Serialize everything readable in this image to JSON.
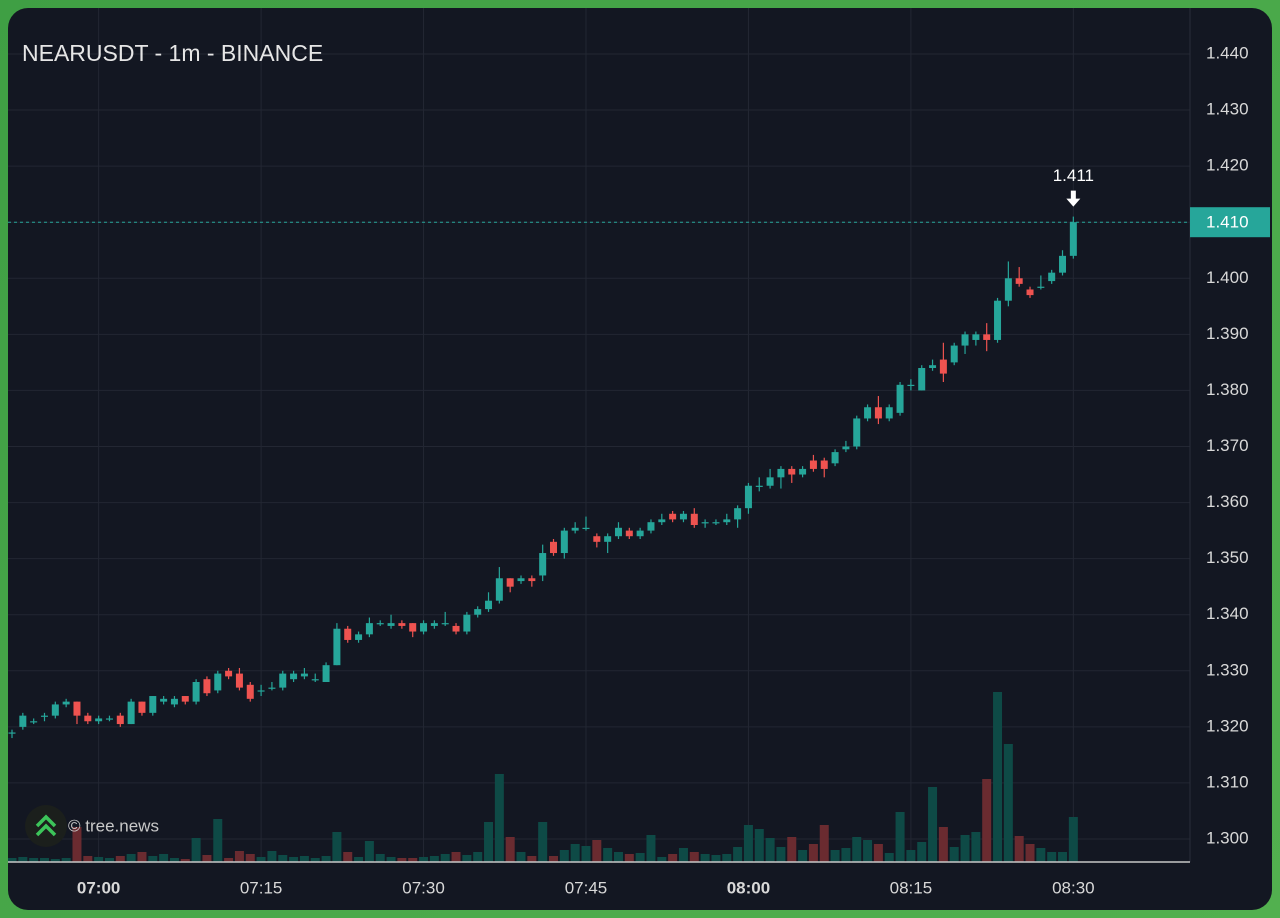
{
  "chart_data": {
    "type": "candlestick",
    "title": "NEARUSDT - 1m - BINANCE",
    "watermark": "© tree.news",
    "x": [
      "06:52",
      "06:53",
      "06:54",
      "06:55",
      "06:56",
      "06:57",
      "06:58",
      "06:59",
      "07:00",
      "07:01",
      "07:02",
      "07:03",
      "07:04",
      "07:05",
      "07:06",
      "07:07",
      "07:08",
      "07:09",
      "07:10",
      "07:11",
      "07:12",
      "07:13",
      "07:14",
      "07:15",
      "07:16",
      "07:17",
      "07:18",
      "07:19",
      "07:20",
      "07:21",
      "07:22",
      "07:23",
      "07:24",
      "07:25",
      "07:26",
      "07:27",
      "07:28",
      "07:29",
      "07:30",
      "07:31",
      "07:32",
      "07:33",
      "07:34",
      "07:35",
      "07:36",
      "07:37",
      "07:38",
      "07:39",
      "07:40",
      "07:41",
      "07:42",
      "07:43",
      "07:44",
      "07:45",
      "07:46",
      "07:47",
      "07:48",
      "07:49",
      "07:50",
      "07:51",
      "07:52",
      "07:53",
      "07:54",
      "07:55",
      "07:56",
      "07:57",
      "07:58",
      "07:59",
      "08:00",
      "08:01",
      "08:02",
      "08:03",
      "08:04",
      "08:05",
      "08:06",
      "08:07",
      "08:08",
      "08:09",
      "08:10",
      "08:11",
      "08:12",
      "08:13",
      "08:14",
      "08:15",
      "08:16",
      "08:17",
      "08:18",
      "08:19",
      "08:20",
      "08:21",
      "08:22",
      "08:23",
      "08:24",
      "08:25",
      "08:26",
      "08:27",
      "08:28",
      "08:29",
      "08:30"
    ],
    "open": [
      1.319,
      1.32,
      1.321,
      1.322,
      1.322,
      1.324,
      1.3245,
      1.322,
      1.321,
      1.3215,
      1.322,
      1.3205,
      1.3245,
      1.3225,
      1.3245,
      1.324,
      1.3255,
      1.3245,
      1.3285,
      1.3265,
      1.33,
      1.3295,
      1.3275,
      1.3265,
      1.327,
      1.327,
      1.3285,
      1.329,
      1.3285,
      1.328,
      1.331,
      1.3375,
      1.3355,
      1.3365,
      1.3385,
      1.338,
      1.3385,
      1.3385,
      1.337,
      1.338,
      1.3385,
      1.338,
      1.337,
      1.34,
      1.341,
      1.3425,
      1.3465,
      1.346,
      1.3465,
      1.347,
      1.353,
      1.351,
      1.355,
      1.3555,
      1.354,
      1.353,
      1.354,
      1.355,
      1.354,
      1.355,
      1.3565,
      1.358,
      1.357,
      1.358,
      1.3565,
      1.3565,
      1.3565,
      1.357,
      1.359,
      1.363,
      1.363,
      1.3645,
      1.366,
      1.365,
      1.3675,
      1.3675,
      1.367,
      1.3695,
      1.37,
      1.375,
      1.377,
      1.375,
      1.376,
      1.381,
      1.38,
      1.384,
      1.3855,
      1.385,
      1.388,
      1.389,
      1.39,
      1.389,
      1.396,
      1.4,
      1.398,
      1.3985,
      1.3995,
      1.401,
      1.404
    ],
    "high": [
      1.3195,
      1.3225,
      1.3215,
      1.3225,
      1.3245,
      1.325,
      1.3245,
      1.3225,
      1.322,
      1.322,
      1.3225,
      1.325,
      1.3245,
      1.3255,
      1.3255,
      1.3255,
      1.3255,
      1.3285,
      1.329,
      1.33,
      1.3305,
      1.3305,
      1.328,
      1.3275,
      1.328,
      1.33,
      1.33,
      1.3305,
      1.3295,
      1.3315,
      1.3385,
      1.338,
      1.337,
      1.3395,
      1.339,
      1.34,
      1.339,
      1.3385,
      1.339,
      1.339,
      1.3405,
      1.3385,
      1.3405,
      1.3415,
      1.344,
      1.3485,
      1.3465,
      1.347,
      1.347,
      1.3525,
      1.3535,
      1.3555,
      1.3565,
      1.3575,
      1.3545,
      1.3545,
      1.3565,
      1.3555,
      1.3555,
      1.357,
      1.358,
      1.3585,
      1.3585,
      1.359,
      1.357,
      1.357,
      1.358,
      1.3595,
      1.3635,
      1.3645,
      1.366,
      1.3665,
      1.3665,
      1.3665,
      1.3685,
      1.368,
      1.3695,
      1.371,
      1.3755,
      1.3775,
      1.379,
      1.3775,
      1.3815,
      1.382,
      1.3845,
      1.3855,
      1.3885,
      1.3885,
      1.3905,
      1.3905,
      1.392,
      1.3965,
      1.403,
      1.402,
      1.3985,
      1.4005,
      1.4015,
      1.405,
      1.411
    ],
    "low": [
      1.318,
      1.3195,
      1.3205,
      1.321,
      1.3215,
      1.3235,
      1.3205,
      1.3205,
      1.3205,
      1.321,
      1.32,
      1.3205,
      1.322,
      1.322,
      1.324,
      1.3235,
      1.324,
      1.324,
      1.3255,
      1.326,
      1.3285,
      1.3265,
      1.3245,
      1.3255,
      1.3265,
      1.3265,
      1.328,
      1.3285,
      1.328,
      1.328,
      1.331,
      1.335,
      1.335,
      1.336,
      1.338,
      1.3375,
      1.3375,
      1.336,
      1.3365,
      1.3375,
      1.338,
      1.3365,
      1.3365,
      1.3395,
      1.3405,
      1.342,
      1.344,
      1.3455,
      1.345,
      1.346,
      1.3505,
      1.35,
      1.3545,
      1.355,
      1.352,
      1.351,
      1.3535,
      1.3535,
      1.3535,
      1.3545,
      1.356,
      1.3565,
      1.3565,
      1.3555,
      1.3555,
      1.356,
      1.356,
      1.3555,
      1.358,
      1.362,
      1.3625,
      1.3625,
      1.3635,
      1.3645,
      1.3655,
      1.3645,
      1.3665,
      1.369,
      1.3695,
      1.3745,
      1.374,
      1.3745,
      1.3755,
      1.38,
      1.38,
      1.3835,
      1.3815,
      1.3845,
      1.3865,
      1.388,
      1.387,
      1.3885,
      1.395,
      1.3985,
      1.3965,
      1.398,
      1.399,
      1.4005,
      1.4035
    ],
    "close": [
      1.319,
      1.322,
      1.321,
      1.322,
      1.324,
      1.3245,
      1.322,
      1.321,
      1.3215,
      1.3215,
      1.3205,
      1.3245,
      1.3225,
      1.3255,
      1.325,
      1.325,
      1.3245,
      1.328,
      1.326,
      1.3295,
      1.329,
      1.327,
      1.325,
      1.3265,
      1.327,
      1.3295,
      1.3295,
      1.3295,
      1.3285,
      1.331,
      1.3375,
      1.3355,
      1.3365,
      1.3385,
      1.3385,
      1.3385,
      1.338,
      1.337,
      1.3385,
      1.3385,
      1.3385,
      1.337,
      1.34,
      1.341,
      1.3425,
      1.3465,
      1.345,
      1.3465,
      1.346,
      1.351,
      1.351,
      1.355,
      1.3555,
      1.3555,
      1.353,
      1.354,
      1.3555,
      1.354,
      1.355,
      1.3565,
      1.357,
      1.357,
      1.358,
      1.356,
      1.3565,
      1.3565,
      1.357,
      1.359,
      1.363,
      1.363,
      1.3645,
      1.366,
      1.365,
      1.366,
      1.366,
      1.366,
      1.369,
      1.37,
      1.375,
      1.377,
      1.375,
      1.377,
      1.381,
      1.381,
      1.384,
      1.3845,
      1.383,
      1.388,
      1.39,
      1.39,
      1.389,
      1.396,
      1.4,
      1.399,
      1.397,
      1.3985,
      1.401,
      1.404,
      1.41
    ],
    "volume": [
      4,
      5,
      4,
      4,
      3,
      4,
      35,
      6,
      5,
      4,
      6,
      8,
      10,
      6,
      8,
      4,
      3,
      24,
      7,
      43,
      4,
      11,
      8,
      5,
      11,
      7,
      5,
      6,
      4,
      6,
      30,
      10,
      5,
      21,
      8,
      5,
      4,
      4,
      5,
      6,
      8,
      10,
      7,
      10,
      40,
      88,
      25,
      10,
      6,
      40,
      6,
      12,
      18,
      16,
      22,
      14,
      10,
      8,
      9,
      27,
      5,
      8,
      14,
      10,
      8,
      7,
      8,
      15,
      37,
      33,
      24,
      15,
      25,
      12,
      18,
      37,
      12,
      14,
      25,
      22,
      18,
      9,
      50,
      12,
      20,
      75,
      35,
      15,
      27,
      30,
      83,
      170,
      118,
      26,
      18,
      14,
      10,
      10,
      45
    ],
    "up_color": "#26a69a",
    "down_color": "#ef5350",
    "volume_up_color": "#0e4a46",
    "volume_down_color": "#6a2b30",
    "ylim": [
      1.2959,
      1.4482
    ],
    "yticks": [
      {
        "value": 1.3,
        "label": "1.300"
      },
      {
        "value": 1.31,
        "label": "1.310"
      },
      {
        "value": 1.32,
        "label": "1.320"
      },
      {
        "value": 1.33,
        "label": "1.330"
      },
      {
        "value": 1.34,
        "label": "1.340"
      },
      {
        "value": 1.35,
        "label": "1.350"
      },
      {
        "value": 1.36,
        "label": "1.360"
      },
      {
        "value": 1.37,
        "label": "1.370"
      },
      {
        "value": 1.38,
        "label": "1.380"
      },
      {
        "value": 1.39,
        "label": "1.390"
      },
      {
        "value": 1.4,
        "label": "1.400"
      },
      {
        "value": 1.41,
        "label": "1.410"
      },
      {
        "value": 1.42,
        "label": "1.420"
      },
      {
        "value": 1.43,
        "label": "1.430"
      },
      {
        "value": 1.44,
        "label": "1.440"
      }
    ],
    "xticks": [
      "07:00",
      "07:15",
      "07:30",
      "07:45",
      "08:00",
      "08:15",
      "08:30"
    ],
    "last_price": {
      "value": 1.41,
      "label": "1.410"
    },
    "annotation": {
      "value": 1.411,
      "label": "1.411"
    },
    "grid": true
  }
}
